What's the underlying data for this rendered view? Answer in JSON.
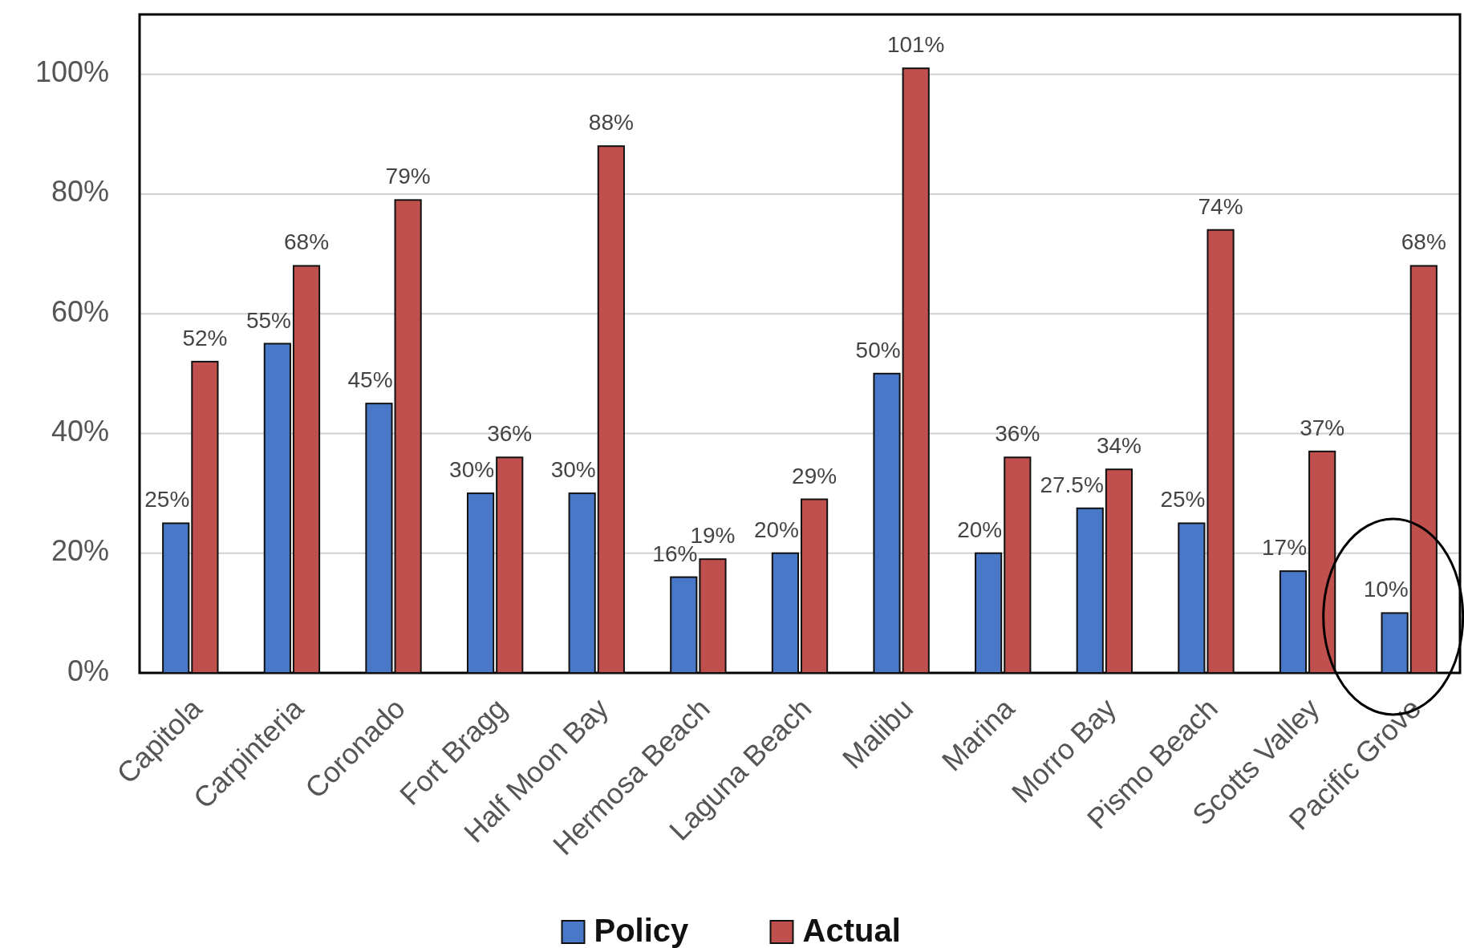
{
  "chart_data": {
    "type": "bar",
    "categories": [
      "Capitola",
      "Carpinteria",
      "Coronado",
      "Fort Bragg",
      "Half Moon Bay",
      "Hermosa Beach",
      "Laguna Beach",
      "Malibu",
      "Marina",
      "Morro Bay",
      "Pismo Beach",
      "Scotts Valley",
      "Pacific Grove"
    ],
    "series": [
      {
        "name": "Policy",
        "color": "#4a78c8",
        "values": [
          25,
          55,
          45,
          30,
          30,
          16,
          20,
          50,
          20,
          27.5,
          25,
          17,
          10
        ],
        "value_labels": [
          "25%",
          "55%",
          "45%",
          "30%",
          "30%",
          "16%",
          "20%",
          "50%",
          "20%",
          "27.5%",
          "25%",
          "17%",
          "10%"
        ]
      },
      {
        "name": "Actual",
        "color": "#c0504d",
        "values": [
          52,
          68,
          79,
          36,
          88,
          19,
          29,
          101,
          36,
          34,
          74,
          37,
          68
        ],
        "value_labels": [
          "52%",
          "68%",
          "79%",
          "36%",
          "88%",
          "19%",
          "29%",
          "101%",
          "36%",
          "34%",
          "74%",
          "37%",
          "68%"
        ]
      }
    ],
    "ylim": [
      0,
      110
    ],
    "yticks": [
      {
        "value": 0,
        "label": "0%"
      },
      {
        "value": 20,
        "label": "20%"
      },
      {
        "value": 40,
        "label": "40%"
      },
      {
        "value": 60,
        "label": "60%"
      },
      {
        "value": 80,
        "label": "80%"
      },
      {
        "value": 100,
        "label": "100%"
      }
    ],
    "grid": "y",
    "legend": "bottom"
  }
}
